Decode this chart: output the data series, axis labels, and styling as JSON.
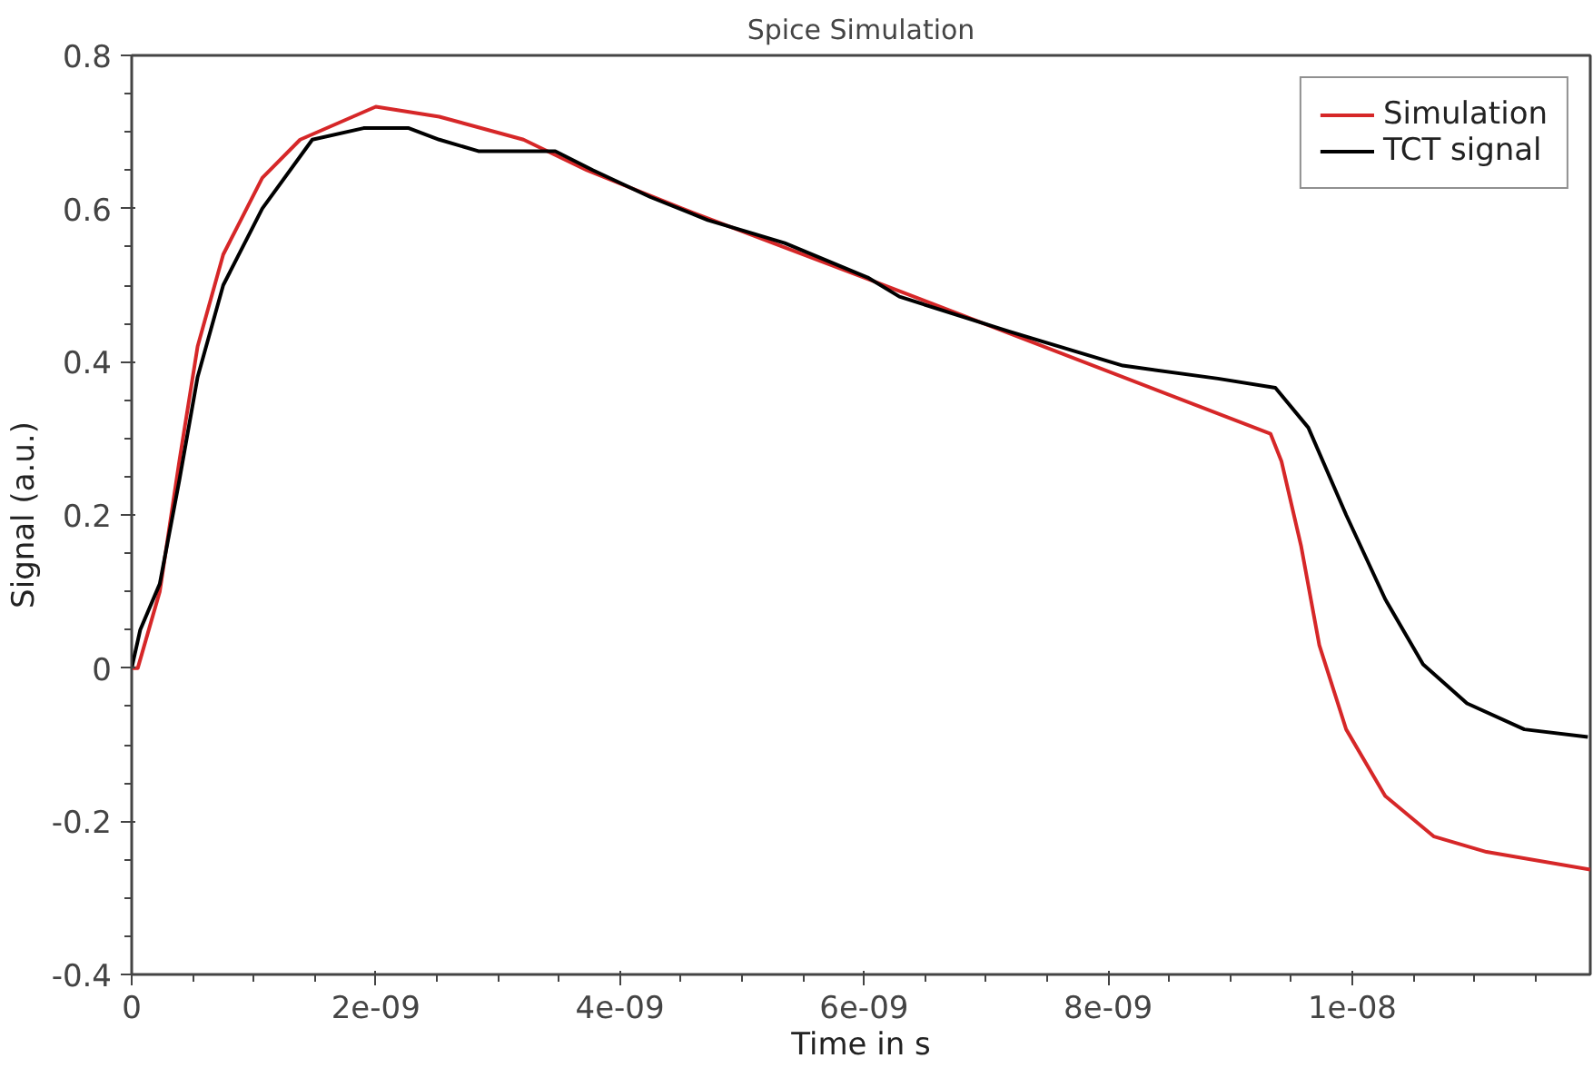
{
  "chart_data": {
    "type": "line",
    "title": "Spice Simulation",
    "xlabel": "Time in s",
    "ylabel": "Signal (a.u.)",
    "xlim": [
      0,
      1.195e-08
    ],
    "ylim": [
      -0.4,
      0.8
    ],
    "xticks": [
      {
        "value": 0,
        "label": "0"
      },
      {
        "value": 2e-09,
        "label": "2e-09"
      },
      {
        "value": 4e-09,
        "label": "4e-09"
      },
      {
        "value": 6e-09,
        "label": "6e-09"
      },
      {
        "value": 8e-09,
        "label": "8e-09"
      },
      {
        "value": 1e-08,
        "label": "1e-08"
      }
    ],
    "yticks": [
      -0.4,
      -0.2,
      0,
      0.2,
      0.4,
      0.6,
      0.8
    ],
    "grid": false,
    "legend": "top right",
    "marker": "none",
    "line_style": "solid",
    "series": [
      {
        "name": "Simulation",
        "color": "#d62728",
        "x": [
          0,
          5e-11,
          2.3e-10,
          3.9e-10,
          5.4e-10,
          7.5e-10,
          1.07e-09,
          1.38e-09,
          2e-09,
          2.52e-09,
          3.21e-09,
          3.73e-09,
          4.51e-09,
          6e-09,
          9.33e-09,
          9.42e-09,
          9.58e-09,
          9.73e-09,
          9.95e-09,
          1.027e-08,
          1.067e-08,
          1.11e-08,
          1.195e-08
        ],
        "values": [
          0,
          0,
          0.1,
          0.27,
          0.42,
          0.54,
          0.64,
          0.69,
          0.733,
          0.72,
          0.69,
          0.65,
          0.6,
          0.51,
          0.306,
          0.27,
          0.16,
          0.03,
          -0.08,
          -0.167,
          -0.22,
          -0.24,
          -0.263
        ]
      },
      {
        "name": "TCT signal",
        "color": "#000000",
        "x": [
          0,
          7e-11,
          2.3e-10,
          3.9e-10,
          5.4e-10,
          7.5e-10,
          1.07e-09,
          1.48e-09,
          1.9e-09,
          2.27e-09,
          2.52e-09,
          2.84e-09,
          3.47e-09,
          3.78e-09,
          4.25e-09,
          4.72e-09,
          5.35e-09,
          6.03e-09,
          6.29e-09,
          7.18e-09,
          8.12e-09,
          8.9e-09,
          9.37e-09,
          9.64e-09,
          9.95e-09,
          1.027e-08,
          1.058e-08,
          1.094e-08,
          1.141e-08,
          1.193e-08
        ],
        "values": [
          0,
          0.05,
          0.11,
          0.245,
          0.38,
          0.5,
          0.6,
          0.69,
          0.705,
          0.705,
          0.69,
          0.675,
          0.675,
          0.65,
          0.615,
          0.585,
          0.555,
          0.51,
          0.485,
          0.44,
          0.395,
          0.378,
          0.366,
          0.314,
          0.2,
          0.09,
          0.005,
          -0.046,
          -0.08,
          -0.09
        ]
      }
    ]
  }
}
